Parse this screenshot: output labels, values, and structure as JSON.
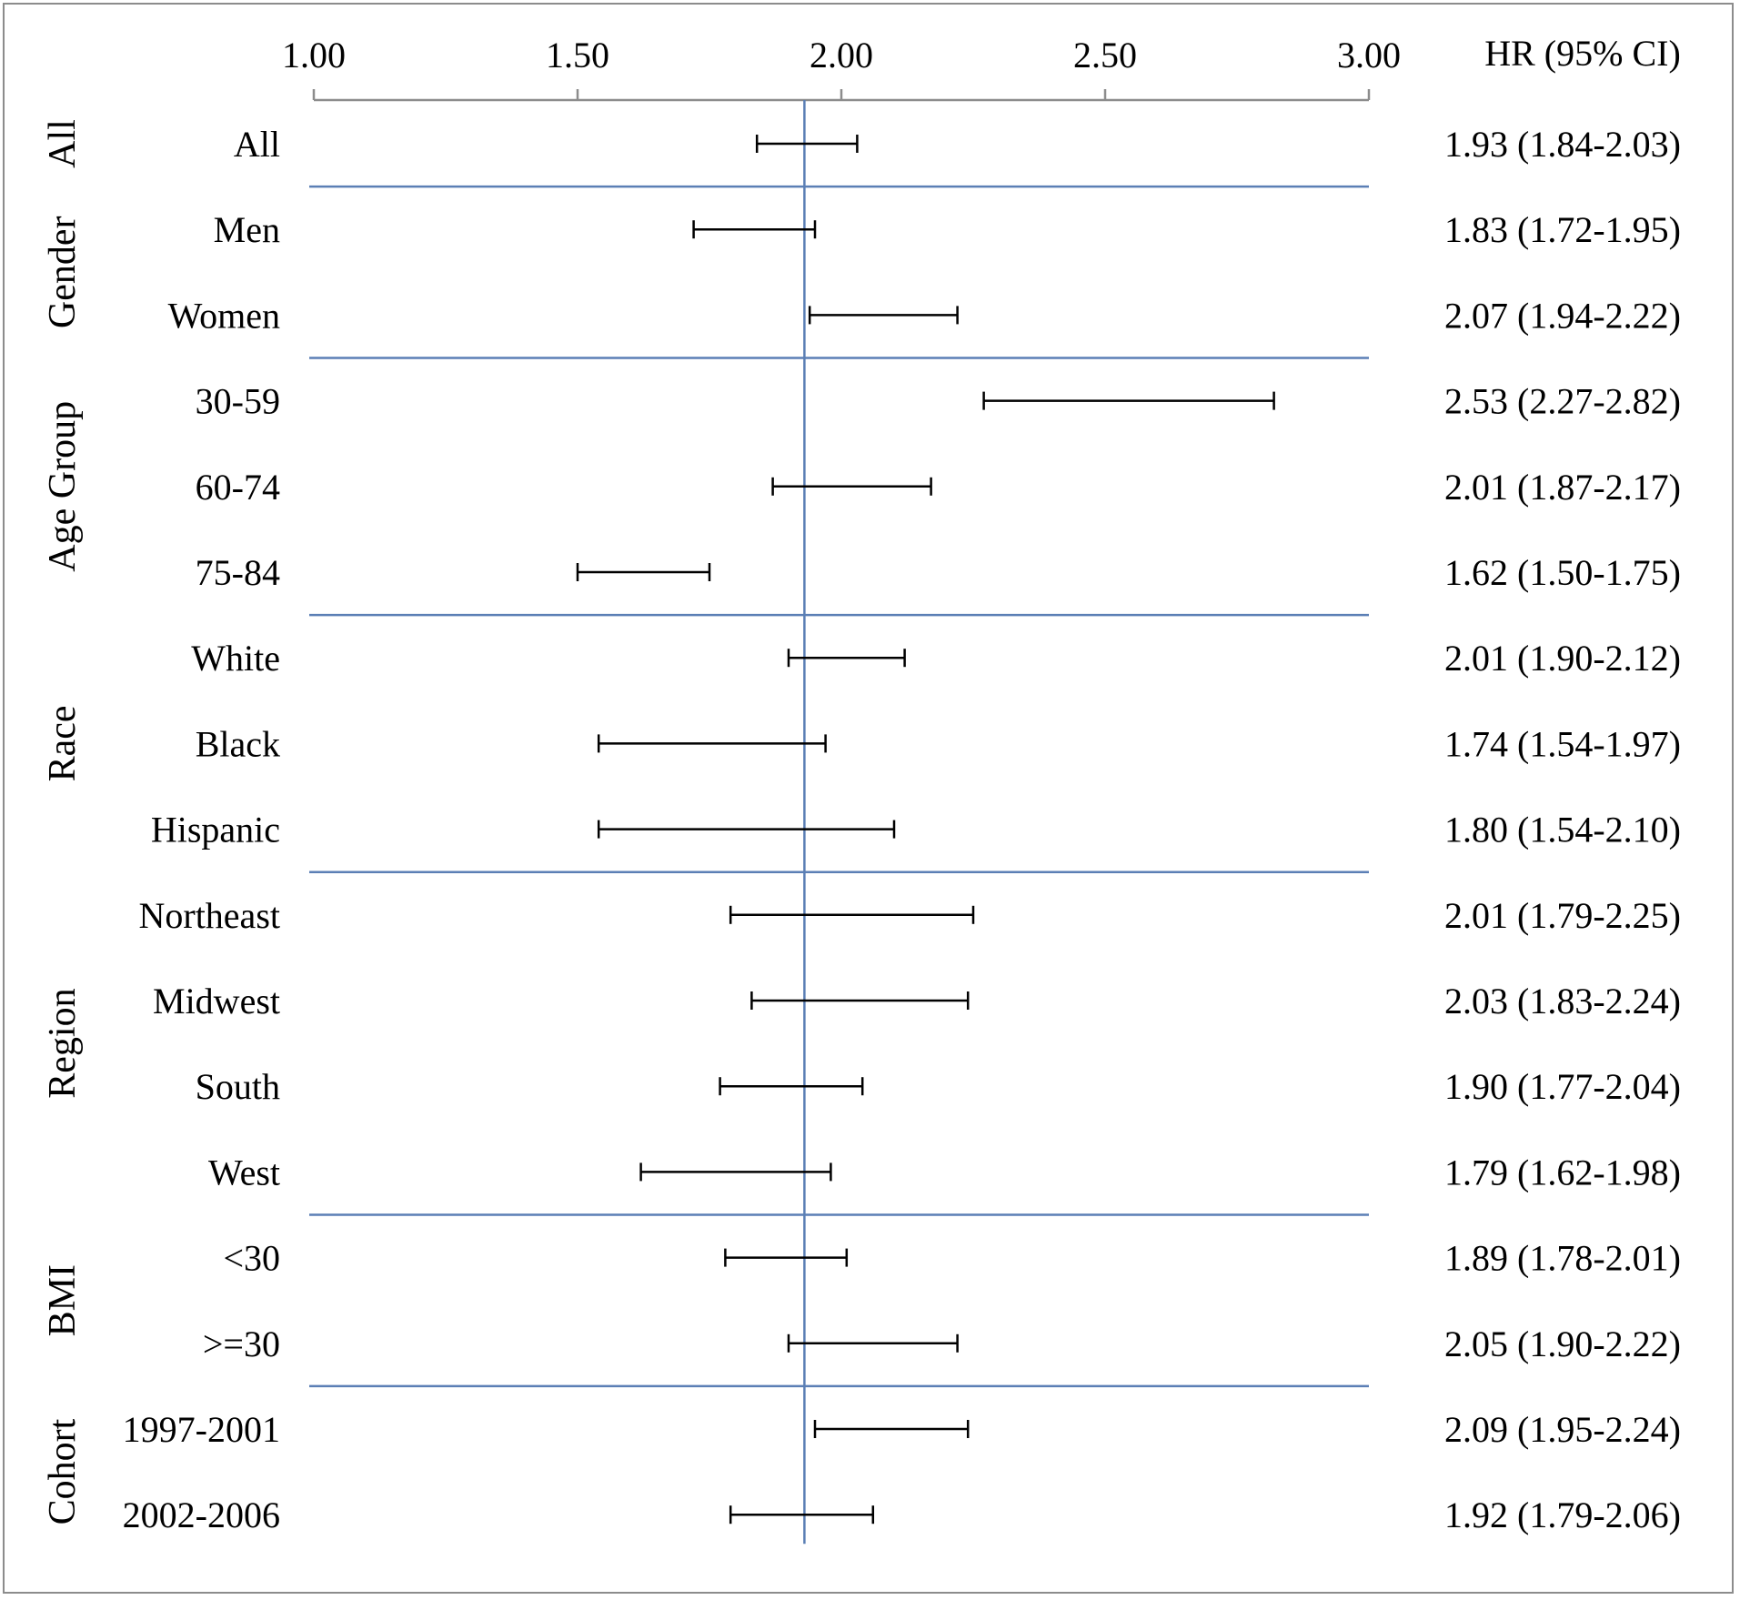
{
  "chart_data": {
    "type": "forest",
    "x_ticks": [
      "1.00",
      "1.50",
      "2.00",
      "2.50",
      "3.00"
    ],
    "xlim": [
      1.0,
      3.0
    ],
    "reference_line": 1.93,
    "column_header": "HR (95% CI)",
    "colors": {
      "separator": "#5b7fb5",
      "reference": "#5b7fb5",
      "ci": "#000000",
      "axis": "#8c8c8c"
    },
    "groups": [
      {
        "name": "All",
        "rows": [
          {
            "label": "All",
            "hr": 1.93,
            "lo": 1.84,
            "hi": 2.03,
            "text": "1.93 (1.84-2.03)"
          }
        ]
      },
      {
        "name": "Gender",
        "rows": [
          {
            "label": "Men",
            "hr": 1.83,
            "lo": 1.72,
            "hi": 1.95,
            "text": "1.83 (1.72-1.95)"
          },
          {
            "label": "Women",
            "hr": 2.07,
            "lo": 1.94,
            "hi": 2.22,
            "text": "2.07 (1.94-2.22)"
          }
        ]
      },
      {
        "name": "Age Group",
        "rows": [
          {
            "label": "30-59",
            "hr": 2.53,
            "lo": 2.27,
            "hi": 2.82,
            "text": "2.53 (2.27-2.82)"
          },
          {
            "label": "60-74",
            "hr": 2.01,
            "lo": 1.87,
            "hi": 2.17,
            "text": "2.01 (1.87-2.17)"
          },
          {
            "label": "75-84",
            "hr": 1.62,
            "lo": 1.5,
            "hi": 1.75,
            "text": "1.62 (1.50-1.75)"
          }
        ]
      },
      {
        "name": "Race",
        "rows": [
          {
            "label": "White",
            "hr": 2.01,
            "lo": 1.9,
            "hi": 2.12,
            "text": "2.01 (1.90-2.12)"
          },
          {
            "label": "Black",
            "hr": 1.74,
            "lo": 1.54,
            "hi": 1.97,
            "text": "1.74 (1.54-1.97)"
          },
          {
            "label": "Hispanic",
            "hr": 1.8,
            "lo": 1.54,
            "hi": 2.1,
            "text": "1.80 (1.54-2.10)"
          }
        ]
      },
      {
        "name": "Region",
        "rows": [
          {
            "label": "Northeast",
            "hr": 2.01,
            "lo": 1.79,
            "hi": 2.25,
            "text": "2.01 (1.79-2.25)"
          },
          {
            "label": "Midwest",
            "hr": 2.03,
            "lo": 1.83,
            "hi": 2.24,
            "text": "2.03 (1.83-2.24)"
          },
          {
            "label": "South",
            "hr": 1.9,
            "lo": 1.77,
            "hi": 2.04,
            "text": "1.90 (1.77-2.04)"
          },
          {
            "label": "West",
            "hr": 1.79,
            "lo": 1.62,
            "hi": 1.98,
            "text": "1.79 (1.62-1.98)"
          }
        ]
      },
      {
        "name": "BMI",
        "rows": [
          {
            "label": "<30",
            "hr": 1.89,
            "lo": 1.78,
            "hi": 2.01,
            "text": "1.89 (1.78-2.01)"
          },
          {
            "label": ">=30",
            "hr": 2.05,
            "lo": 1.9,
            "hi": 2.22,
            "text": "2.05 (1.90-2.22)"
          }
        ]
      },
      {
        "name": "Cohort",
        "rows": [
          {
            "label": "1997-2001",
            "hr": 2.09,
            "lo": 1.95,
            "hi": 2.24,
            "text": "2.09 (1.95-2.24)"
          },
          {
            "label": "2002-2006",
            "hr": 1.92,
            "lo": 1.79,
            "hi": 2.06,
            "text": "1.92 (1.79-2.06)"
          }
        ]
      }
    ]
  }
}
